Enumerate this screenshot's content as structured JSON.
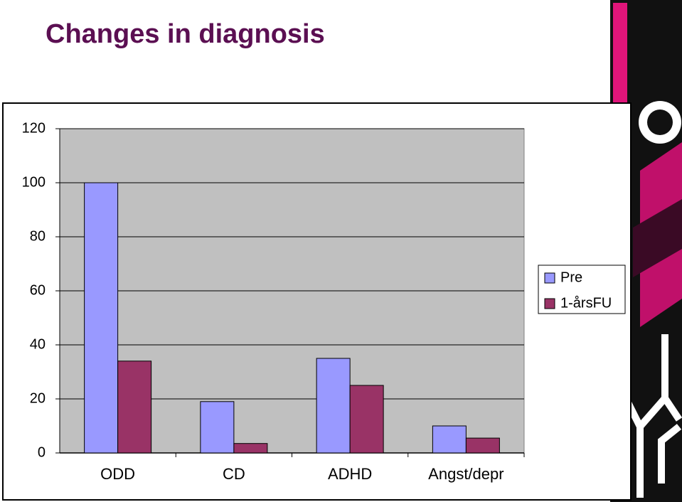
{
  "title": "Changes in diagnosis",
  "chart_data": {
    "type": "bar",
    "categories": [
      "ODD",
      "CD",
      "ADHD",
      "Angst/depr"
    ],
    "series": [
      {
        "name": "Pre",
        "color": "#9999ff",
        "values": [
          100,
          19,
          35,
          10
        ]
      },
      {
        "name": "1-årsFU",
        "color": "#993366",
        "values": [
          34,
          3.5,
          25,
          5.5
        ]
      }
    ],
    "ylim": [
      0,
      120
    ],
    "yticks": [
      0,
      20,
      40,
      60,
      80,
      100,
      120
    ],
    "grid": true,
    "legend": "right"
  }
}
